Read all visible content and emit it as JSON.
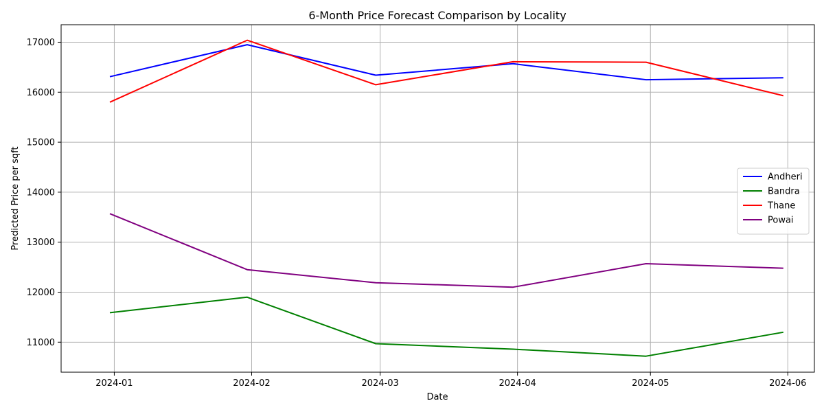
{
  "chart_data": {
    "type": "line",
    "title": "6-Month Price Forecast Comparison by Locality",
    "xlabel": "Date",
    "ylabel": "Predicted Price per sqft",
    "x": [
      "2023-12-31",
      "2024-01-31",
      "2024-02-29",
      "2024-03-31",
      "2024-04-30",
      "2024-05-31"
    ],
    "x_ticks": [
      "2024-01",
      "2024-02",
      "2024-03",
      "2024-04",
      "2024-05",
      "2024-06"
    ],
    "x_tick_dates": [
      "2024-01-01",
      "2024-02-01",
      "2024-03-01",
      "2024-04-01",
      "2024-05-01",
      "2024-06-01"
    ],
    "xlim": [
      "2023-12-20",
      "2024-06-07"
    ],
    "y_ticks": [
      11000,
      12000,
      13000,
      14000,
      15000,
      16000,
      17000
    ],
    "ylim": [
      10400,
      17350
    ],
    "grid": true,
    "legend_position": "center-right",
    "series": [
      {
        "name": "Andheri",
        "color": "#0000ff",
        "values": [
          16310,
          16950,
          16340,
          16570,
          16250,
          16290
        ]
      },
      {
        "name": "Bandra",
        "color": "#008000",
        "values": [
          11590,
          11900,
          10970,
          10860,
          10720,
          11200
        ]
      },
      {
        "name": "Thane",
        "color": "#ff0000",
        "values": [
          15800,
          17040,
          16150,
          16610,
          16600,
          15930
        ]
      },
      {
        "name": "Powai",
        "color": "#800080",
        "values": [
          13570,
          12450,
          12190,
          12100,
          12570,
          12480
        ]
      }
    ]
  }
}
